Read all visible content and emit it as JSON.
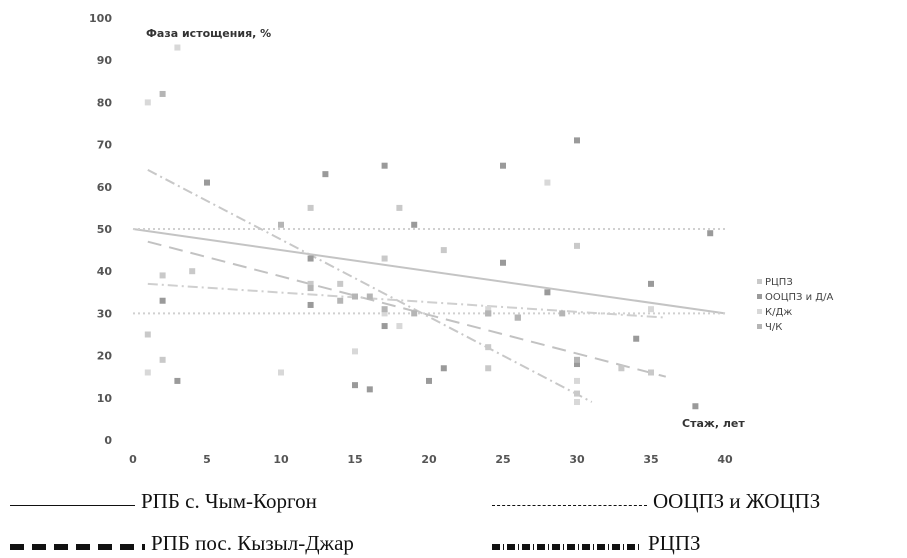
{
  "chart_data": {
    "type": "scatter",
    "title": "Фаза истощения, %",
    "xlabel": "Стаж, лет",
    "ylabel": "",
    "xlim": [
      0,
      40
    ],
    "ylim": [
      0,
      100
    ],
    "x_ticks": [
      "0",
      "5",
      "10",
      "15",
      "20",
      "25",
      "30",
      "35",
      "40"
    ],
    "y_ticks": [
      "0",
      "10",
      "20",
      "30",
      "40",
      "50",
      "60",
      "70",
      "80",
      "90",
      "100"
    ],
    "grid": false,
    "legend_position": "right",
    "series": [
      {
        "name": "РЦПЗ",
        "color": "#c9c9c9",
        "points": [
          [
            1,
            25
          ],
          [
            2,
            19
          ],
          [
            2,
            39
          ],
          [
            4,
            40
          ],
          [
            12,
            55
          ],
          [
            12,
            37
          ],
          [
            14,
            37
          ],
          [
            17,
            43
          ],
          [
            18,
            55
          ],
          [
            21,
            45
          ],
          [
            24,
            22
          ],
          [
            24,
            17
          ],
          [
            30,
            46
          ],
          [
            30,
            11
          ],
          [
            33,
            17
          ],
          [
            35,
            16
          ]
        ]
      },
      {
        "name": "ООЦПЗ и Д/А",
        "color": "#9a9a9a",
        "points": [
          [
            2,
            33
          ],
          [
            3,
            14
          ],
          [
            5,
            61
          ],
          [
            12,
            43
          ],
          [
            12,
            32
          ],
          [
            13,
            63
          ],
          [
            15,
            13
          ],
          [
            16,
            12
          ],
          [
            17,
            27
          ],
          [
            17,
            65
          ],
          [
            19,
            51
          ],
          [
            20,
            14
          ],
          [
            21,
            17
          ],
          [
            24,
            30
          ],
          [
            25,
            42
          ],
          [
            25,
            65
          ],
          [
            26,
            29
          ],
          [
            28,
            35
          ],
          [
            30,
            18
          ],
          [
            30,
            71
          ],
          [
            34,
            24
          ],
          [
            35,
            37
          ],
          [
            38,
            8
          ],
          [
            39,
            49
          ]
        ]
      },
      {
        "name": "К/Дж",
        "color": "#d8d8d8",
        "points": [
          [
            1,
            16
          ],
          [
            1,
            80
          ],
          [
            3,
            93
          ],
          [
            10,
            16
          ],
          [
            15,
            21
          ],
          [
            17,
            30
          ],
          [
            18,
            27
          ],
          [
            24,
            31
          ],
          [
            28,
            61
          ],
          [
            30,
            14
          ],
          [
            30,
            9
          ],
          [
            35,
            31
          ]
        ]
      },
      {
        "name": "Ч/К",
        "color": "#b5b5b5",
        "points": [
          [
            2,
            82
          ],
          [
            10,
            51
          ],
          [
            12,
            36
          ],
          [
            14,
            33
          ],
          [
            15,
            34
          ],
          [
            16,
            34
          ],
          [
            17,
            31
          ],
          [
            19,
            30
          ],
          [
            24,
            30
          ],
          [
            26,
            29
          ],
          [
            29,
            30
          ],
          [
            30,
            19
          ]
        ]
      }
    ],
    "trend_lines": [
      {
        "style": "solid",
        "color": "#c4c4c4",
        "from": [
          0,
          50
        ],
        "to": [
          40,
          30
        ]
      },
      {
        "style": "longdash",
        "color": "#c2c2c2",
        "from": [
          1,
          47
        ],
        "to": [
          36,
          15
        ]
      },
      {
        "style": "dotted",
        "color": "#d0d0d0",
        "from": [
          0,
          30
        ],
        "to": [
          40,
          30
        ]
      },
      {
        "style": "dotted",
        "color": "#d0d0d0",
        "from": [
          0,
          50
        ],
        "to": [
          40,
          50
        ]
      },
      {
        "style": "dashdot",
        "color": "#c8c8c8",
        "from": [
          1,
          64
        ],
        "to": [
          31,
          9
        ]
      },
      {
        "style": "dashdot",
        "color": "#cfcfcf",
        "from": [
          1,
          37
        ],
        "to": [
          36,
          29
        ]
      }
    ]
  },
  "caption": {
    "line1_left": "РПБ с. Чым-Коргон",
    "line1_right": "ООЦПЗ и ЖОЦПЗ",
    "line2_left": "РПБ пос. Кызыл-Джар",
    "line2_right": "РЦПЗ"
  }
}
